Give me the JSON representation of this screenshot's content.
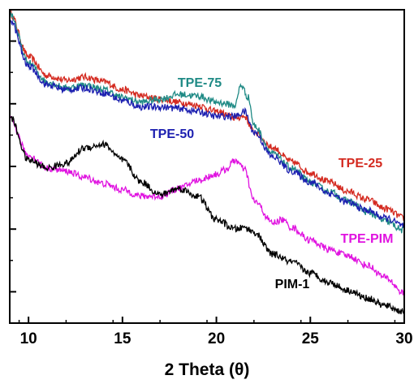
{
  "chart_data": {
    "type": "line",
    "title": "",
    "xlabel": "2 Theta (θ)",
    "ylabel": "",
    "xlim": [
      9,
      30
    ],
    "ylim": [
      0,
      10
    ],
    "x_ticks": [
      10,
      15,
      20,
      25,
      30
    ],
    "y_tick_labels_shown": false,
    "grid": false,
    "legend": "inline labels",
    "series": [
      {
        "name": "TPE-25",
        "color": "#d42a20",
        "points": [
          [
            9,
            9.9
          ],
          [
            10,
            8.5
          ],
          [
            11,
            7.9
          ],
          [
            12,
            7.75
          ],
          [
            13,
            7.85
          ],
          [
            14,
            7.7
          ],
          [
            15,
            7.45
          ],
          [
            16,
            7.25
          ],
          [
            17,
            7.15
          ],
          [
            18,
            7.05
          ],
          [
            19,
            6.95
          ],
          [
            20,
            6.75
          ],
          [
            21,
            6.55
          ],
          [
            21.5,
            6.6
          ],
          [
            22,
            6.1
          ],
          [
            23,
            5.6
          ],
          [
            24,
            5.15
          ],
          [
            25,
            4.8
          ],
          [
            26,
            4.5
          ],
          [
            27,
            4.2
          ],
          [
            28,
            3.95
          ],
          [
            29,
            3.65
          ],
          [
            30,
            3.35
          ]
        ]
      },
      {
        "name": "TPE-75",
        "color": "#1f8a85",
        "points": [
          [
            9,
            9.9
          ],
          [
            10,
            8.3
          ],
          [
            11,
            7.7
          ],
          [
            12,
            7.5
          ],
          [
            13,
            7.6
          ],
          [
            14,
            7.45
          ],
          [
            15,
            7.2
          ],
          [
            16,
            7.05
          ],
          [
            17,
            7.15
          ],
          [
            18,
            7.3
          ],
          [
            19,
            7.25
          ],
          [
            20,
            7.05
          ],
          [
            21,
            6.95
          ],
          [
            21.3,
            7.6
          ],
          [
            21.7,
            7.2
          ],
          [
            22,
            6.3
          ],
          [
            23,
            5.4
          ],
          [
            24,
            4.95
          ],
          [
            25,
            4.5
          ],
          [
            26,
            4.2
          ],
          [
            27,
            3.9
          ],
          [
            28,
            3.55
          ],
          [
            29,
            3.25
          ],
          [
            30,
            2.95
          ]
        ]
      },
      {
        "name": "TPE-50",
        "color": "#1c1fb0",
        "points": [
          [
            9,
            9.7
          ],
          [
            10,
            8.2
          ],
          [
            11,
            7.6
          ],
          [
            12,
            7.45
          ],
          [
            13,
            7.5
          ],
          [
            14,
            7.35
          ],
          [
            15,
            7.1
          ],
          [
            16,
            6.9
          ],
          [
            17,
            6.9
          ],
          [
            18,
            6.85
          ],
          [
            19,
            6.75
          ],
          [
            20,
            6.6
          ],
          [
            21,
            6.6
          ],
          [
            21.5,
            6.75
          ],
          [
            22,
            6.1
          ],
          [
            23,
            5.3
          ],
          [
            24,
            4.85
          ],
          [
            25,
            4.5
          ],
          [
            26,
            4.15
          ],
          [
            27,
            3.85
          ],
          [
            28,
            3.6
          ],
          [
            29,
            3.35
          ],
          [
            30,
            3.1
          ]
        ]
      },
      {
        "name": "TPE-PIM",
        "color": "#e013e0",
        "points": [
          [
            9,
            6.5
          ],
          [
            10,
            5.35
          ],
          [
            11,
            4.95
          ],
          [
            12,
            4.85
          ],
          [
            13,
            4.65
          ],
          [
            14,
            4.45
          ],
          [
            15,
            4.25
          ],
          [
            16,
            4.05
          ],
          [
            17,
            4.05
          ],
          [
            18,
            4.3
          ],
          [
            19,
            4.55
          ],
          [
            20,
            4.75
          ],
          [
            20.5,
            4.9
          ],
          [
            21,
            5.2
          ],
          [
            21.5,
            4.9
          ],
          [
            22,
            3.9
          ],
          [
            23,
            3.2
          ],
          [
            23.5,
            3.3
          ],
          [
            24,
            3.05
          ],
          [
            25,
            2.65
          ],
          [
            26,
            2.35
          ],
          [
            27,
            2.15
          ],
          [
            28,
            1.85
          ],
          [
            29,
            1.45
          ],
          [
            30,
            0.95
          ]
        ]
      },
      {
        "name": "PIM-1",
        "color": "#000000",
        "points": [
          [
            9,
            6.6
          ],
          [
            10,
            5.2
          ],
          [
            11,
            4.95
          ],
          [
            12,
            5.1
          ],
          [
            13,
            5.6
          ],
          [
            14,
            5.7
          ],
          [
            15,
            5.2
          ],
          [
            16,
            4.5
          ],
          [
            17,
            4.1
          ],
          [
            18,
            4.3
          ],
          [
            19,
            4.05
          ],
          [
            20,
            3.3
          ],
          [
            21,
            3.0
          ],
          [
            21.5,
            3.05
          ],
          [
            22,
            2.9
          ],
          [
            23,
            2.2
          ],
          [
            24,
            1.95
          ],
          [
            25,
            1.6
          ],
          [
            26,
            1.3
          ],
          [
            27,
            1.05
          ],
          [
            28,
            0.8
          ],
          [
            29,
            0.55
          ],
          [
            30,
            0.35
          ]
        ]
      }
    ]
  }
}
